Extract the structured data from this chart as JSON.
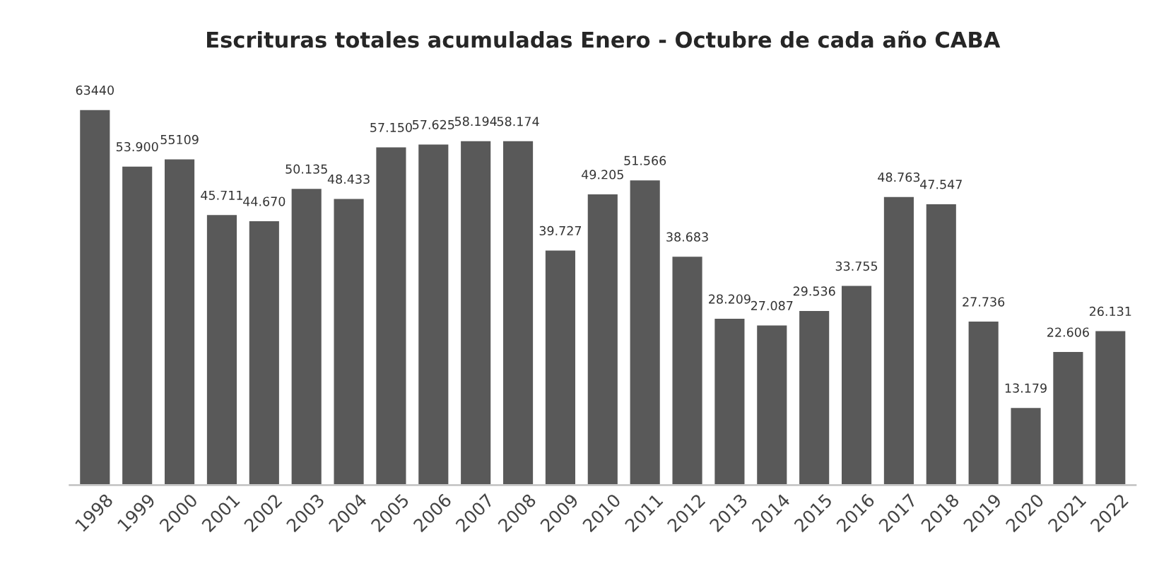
{
  "chart_data": {
    "type": "bar",
    "title": "Escrituras totales acumuladas Enero - Octubre de cada año CABA",
    "categories": [
      "1998",
      "1999",
      "2000",
      "2001",
      "2002",
      "2003",
      "2004",
      "2005",
      "2006",
      "2007",
      "2008",
      "2009",
      "2010",
      "2011",
      "2012",
      "2013",
      "2014",
      "2015",
      "2016",
      "2017",
      "2018",
      "2019",
      "2020",
      "2021",
      "2022"
    ],
    "values": [
      63440,
      53900,
      55109,
      45711,
      44670,
      50135,
      48433,
      57150,
      57625,
      58194,
      58174,
      39727,
      49205,
      51566,
      38683,
      28209,
      27087,
      29536,
      33755,
      48763,
      47547,
      27736,
      13179,
      22606,
      26131
    ],
    "value_labels": [
      "63440",
      "53.900",
      "55109",
      "45.711",
      "44.670",
      "50.135",
      "48.433",
      "57.150",
      "57.625",
      "58.194",
      "58.174",
      "39.727",
      "49.205",
      "51.566",
      "38.683",
      "28.209",
      "27.087",
      "29.536",
      "33.755",
      "48.763",
      "47.547",
      "27.736",
      "13.179",
      "22.606",
      "26.131"
    ],
    "color": "#595959",
    "grid": false,
    "legend": false
  }
}
